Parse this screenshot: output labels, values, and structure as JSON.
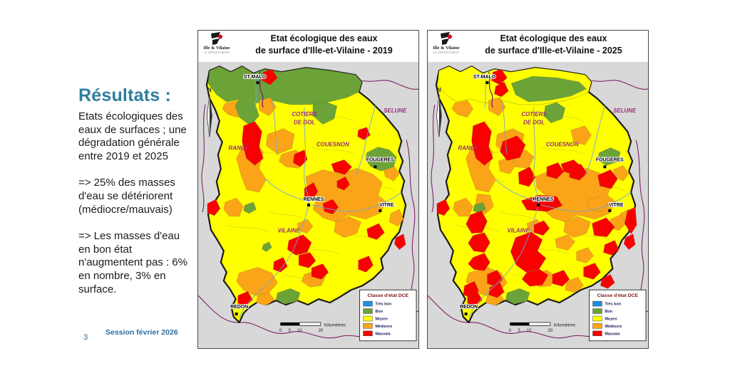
{
  "slide": {
    "title": "Résultats :",
    "paragraphs": [
      "Etats écologiques des eaux de surfaces ; une dégradation générale entre 2019 et 2025",
      "=> 25% des masses d'eau se détériorent (médiocre/mauvais)",
      "=> Les masses d'eau en bon état n'augmentent pas : 6% en nombre, 3% en surface."
    ],
    "footer": {
      "session": "Session février 2026",
      "page": "3"
    },
    "accent_color": "#2E7E9D"
  },
  "maps": [
    {
      "id": "map-2019",
      "year": "2019",
      "title_line1": "Etat écologique des eaux",
      "title_line2": "de surface d'Ille-et-Vilaine - 2019",
      "logo_text": "Ille & Vilaine",
      "logo_subtext": "LE DÉPARTEMENT"
    },
    {
      "id": "map-2025",
      "year": "2025",
      "title_line1": "Etat écologique des eaux",
      "title_line2": "de surface d'Ille-et-Vilaine - 2025",
      "logo_text": "Ille & Vilaine",
      "logo_subtext": "LE DÉPARTEMENT"
    }
  ],
  "map_shared": {
    "north_label": "N",
    "cities": [
      "ST-MALO",
      "FOUGERES",
      "RENNES",
      "VITRE",
      "REDON"
    ],
    "basins": [
      "COTIERS",
      "DE DOL",
      "SELUNE",
      "RANCE",
      "COUESNON",
      "VILAINE"
    ],
    "scale_ticks": [
      "0",
      "5",
      "10",
      "20"
    ],
    "scale_unit": "Kilomètres",
    "legend": {
      "title": "Classe d'état DCE",
      "items": [
        {
          "label": "Très bon",
          "color": "#1E8FE0"
        },
        {
          "label": "Bon",
          "color": "#6CA338"
        },
        {
          "label": "Moyen",
          "color": "#FFFF00"
        },
        {
          "label": "Médiocre",
          "color": "#FBA417"
        },
        {
          "label": "Mauvais",
          "color": "#F80000"
        }
      ]
    },
    "colors": {
      "department_fill": "#FFFF00",
      "outside_fill": "#D8D8D8",
      "basin_boundary": "#7B2166",
      "basin_label": "#992F7F",
      "river": "#6FA8DC",
      "department_border": "#1a1a1a"
    }
  }
}
